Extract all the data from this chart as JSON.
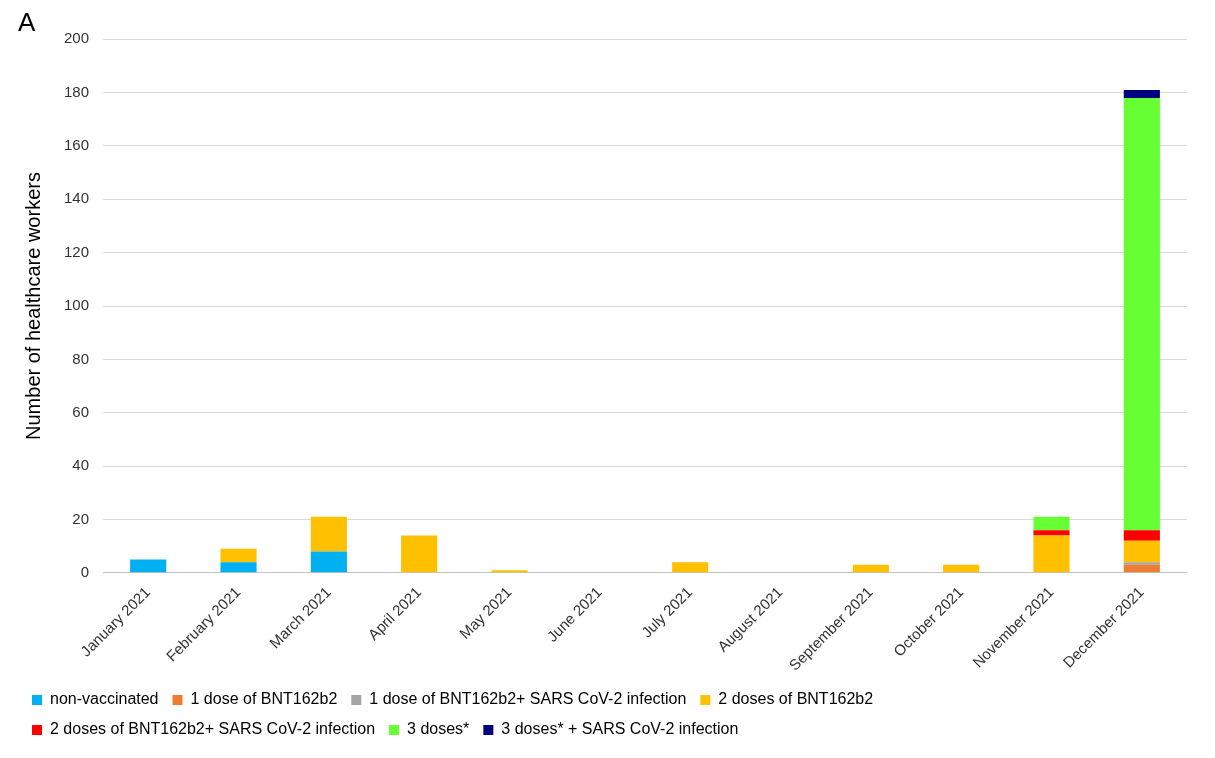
{
  "chart_data": {
    "type": "bar",
    "title": "A",
    "ylabel": "Number of healthcare workers",
    "categories": [
      "January 2021",
      "February 2021",
      "March 2021",
      "April 2021",
      "May 2021",
      "June 2021",
      "July 2021",
      "August 2021",
      "September 2021",
      "October 2021",
      "November 2021",
      "December 2021"
    ],
    "series": [
      {
        "name": "non-vaccinated",
        "color": "#00b0f0",
        "values": [
          5,
          4,
          8,
          0,
          0,
          0,
          0,
          0,
          0,
          0,
          0,
          0
        ]
      },
      {
        "name": "1 dose of BNT162b2",
        "color": "#ed7d31",
        "values": [
          0,
          0,
          0,
          0,
          0,
          0,
          0,
          0,
          0,
          0,
          0,
          3
        ]
      },
      {
        "name": "1 dose of BNT162b2+ SARS CoV-2 infection",
        "color": "#a5a5a5",
        "values": [
          0,
          0,
          0,
          0,
          0,
          0,
          0,
          0,
          0,
          0,
          0,
          1
        ]
      },
      {
        "name": "2 doses of BNT162b2",
        "color": "#ffc000",
        "values": [
          0,
          5,
          13,
          14,
          1,
          0,
          4,
          0,
          3,
          3,
          14,
          8
        ]
      },
      {
        "name": "2 doses of BNT162b2+ SARS CoV-2 infection",
        "color": "#ff0000",
        "values": [
          0,
          0,
          0,
          0,
          0,
          0,
          0,
          0,
          0,
          0,
          2,
          4
        ]
      },
      {
        "name": "3 doses*",
        "color": "#66ff33",
        "values": [
          0,
          0,
          0,
          0,
          0,
          0,
          0,
          0,
          0,
          0,
          5,
          162
        ]
      },
      {
        "name": "3 doses* + SARS CoV-2 infection",
        "color": "#000080",
        "values": [
          0,
          0,
          0,
          0,
          0,
          0,
          0,
          0,
          0,
          0,
          0,
          3
        ]
      }
    ],
    "stacked": true,
    "ylim": [
      0,
      200
    ],
    "yticks": [
      0,
      20,
      40,
      60,
      80,
      100,
      120,
      140,
      160,
      180,
      200
    ],
    "grid": "y",
    "legend": "bottom"
  }
}
